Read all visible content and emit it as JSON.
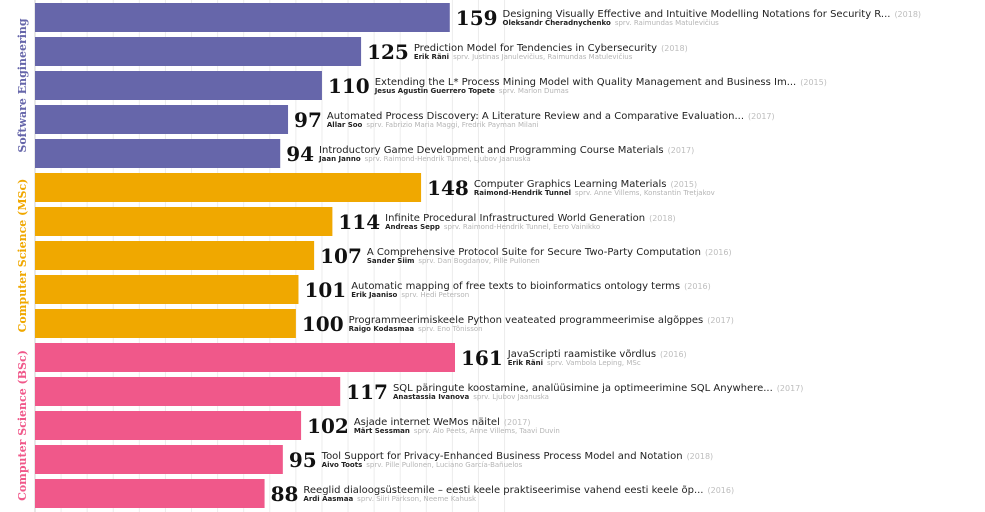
{
  "chart_data": {
    "type": "bar",
    "orientation": "horizontal",
    "grid": true,
    "xlim": [
      0,
      180
    ],
    "groups": [
      {
        "name": "Software Engineering",
        "color": "#6666aa",
        "items": [
          {
            "value": 159,
            "title": "Designing Visually Effective and Intuitive Modelling Notations for Security R...",
            "year": "(2018)",
            "author": "Oleksandr Cheradnychenko",
            "supervisor": "sprv. Raimundas Matulevičius"
          },
          {
            "value": 125,
            "title": "Prediction Model for Tendencies in Cybersecurity",
            "year": "(2018)",
            "author": "Erik Räni",
            "supervisor": "sprv. Justinas Janulevičius, Raimundas Matulevičius"
          },
          {
            "value": 110,
            "title": "Extending the L* Process Mining Model with Quality Management and Business Im...",
            "year": "(2015)",
            "author": "Jesus Agustin Guerrero Topete",
            "supervisor": "sprv. Marlon Dumas"
          },
          {
            "value": 97,
            "title": "Automated Process Discovery: A Literature Review and a Comparative Evaluation...",
            "year": "(2017)",
            "author": "Allar Soo",
            "supervisor": "sprv. Fabrizio Maria Maggi, Fredrik Payman Milani"
          },
          {
            "value": 94,
            "title": "Introductory Game Development and Programming Course Materials",
            "year": "(2017)",
            "author": "Jaan Janno",
            "supervisor": "sprv. Raimond-Hendrik Tunnel, Ljubov Jaanuska"
          }
        ]
      },
      {
        "name": "Computer Science (MSc)",
        "color": "#f0a800",
        "items": [
          {
            "value": 148,
            "title": "Computer Graphics Learning Materials",
            "year": "(2015)",
            "author": "Raimond-Hendrik Tunnel",
            "supervisor": "sprv. Anne Villems, Konstantin Tretjakov"
          },
          {
            "value": 114,
            "title": "Infinite Procedural Infrastructured World Generation",
            "year": "(2018)",
            "author": "Andreas Sepp",
            "supervisor": "sprv. Raimond-Hendrik Tunnel, Eero Vainikko"
          },
          {
            "value": 107,
            "title": "A Comprehensive Protocol Suite for Secure Two-Party Computation",
            "year": "(2016)",
            "author": "Sander Siim",
            "supervisor": "sprv. Dan Bogdanov, Pille Pullonen"
          },
          {
            "value": 101,
            "title": "Automatic mapping of free texts to bioinformatics ontology terms",
            "year": "(2016)",
            "author": "Erik Jaaniso",
            "supervisor": "sprv. Hedi Peterson"
          },
          {
            "value": 100,
            "title": "Programmeerimiskeele Python veateated programmeerimise algõppes",
            "year": "(2017)",
            "author": "Raigo Kodasmaa",
            "supervisor": "sprv. Eno Tõnisson"
          }
        ]
      },
      {
        "name": "Computer Science (BSc)",
        "color": "#f0588a",
        "items": [
          {
            "value": 161,
            "title": "JavaScripti raamistike võrdlus",
            "year": "(2016)",
            "author": "Erik Räni",
            "supervisor": "sprv. Vambola Leping, MSc"
          },
          {
            "value": 117,
            "title": "SQL päringute koostamine, analüüsimine ja optimeerimine SQL Anywhere...",
            "year": "(2017)",
            "author": "Anastassia Ivanova",
            "supervisor": "sprv. Ljubov Jaanuska"
          },
          {
            "value": 102,
            "title": "Asjade internet WeMos näitel",
            "year": "(2017)",
            "author": "Märt Sessman",
            "supervisor": "sprv. Alo Peets, Anne Villems, Taavi Duvin"
          },
          {
            "value": 95,
            "title": "Tool Support for Privacy-Enhanced Business Process Model and Notation",
            "year": "(2018)",
            "author": "Aivo Toots",
            "supervisor": "sprv. Pille Pullonen, Luciano García-Bañuelos"
          },
          {
            "value": 88,
            "title": "Reeglid dialoogsüsteemile – eesti keele praktiseerimise vahend eesti keele õp...",
            "year": "(2016)",
            "author": "Ardi Aasmaa",
            "supervisor": "sprv. Siiri Pärkson, Neeme Kahusk"
          }
        ]
      }
    ]
  }
}
